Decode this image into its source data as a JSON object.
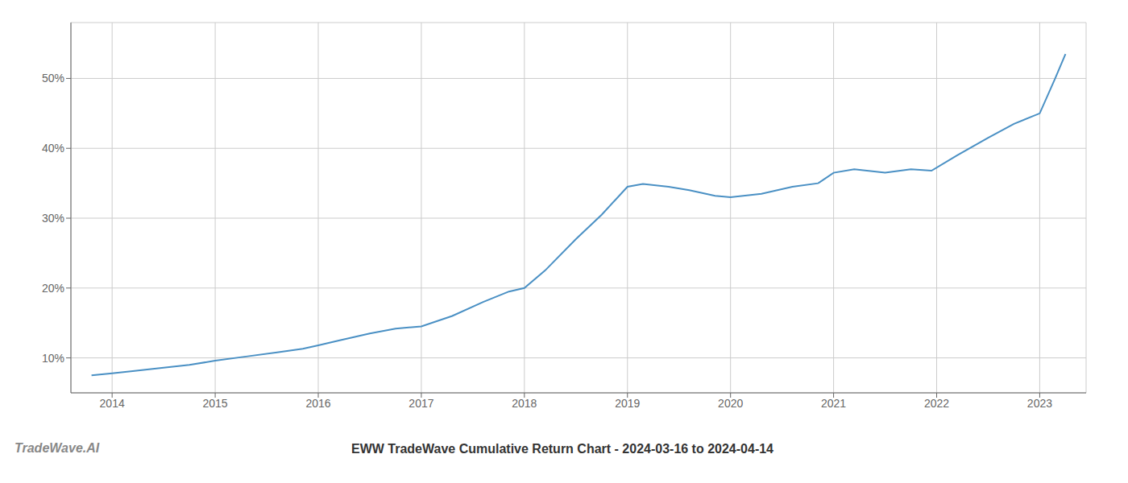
{
  "chart_data": {
    "type": "line",
    "title": "EWW TradeWave Cumulative Return Chart - 2024-03-16 to 2024-04-14",
    "annotations": [
      "TradeWave.AI"
    ],
    "x": [
      2013.8,
      2014.0,
      2014.2,
      2014.5,
      2014.75,
      2015.0,
      2015.3,
      2015.6,
      2015.85,
      2016.0,
      2016.2,
      2016.5,
      2016.75,
      2017.0,
      2017.3,
      2017.6,
      2017.85,
      2018.0,
      2018.2,
      2018.5,
      2018.75,
      2019.0,
      2019.15,
      2019.4,
      2019.6,
      2019.85,
      2020.0,
      2020.3,
      2020.6,
      2020.85,
      2021.0,
      2021.2,
      2021.5,
      2021.75,
      2021.95,
      2022.2,
      2022.5,
      2022.75,
      2023.0,
      2023.15,
      2023.25
    ],
    "values": [
      7.5,
      7.8,
      8.1,
      8.6,
      9.0,
      9.6,
      10.2,
      10.8,
      11.3,
      11.8,
      12.5,
      13.5,
      14.2,
      14.5,
      16.0,
      18.0,
      19.5,
      20.0,
      22.5,
      27.0,
      30.5,
      34.5,
      34.9,
      34.5,
      34.0,
      33.2,
      33.0,
      33.5,
      34.5,
      35.0,
      36.5,
      37.0,
      36.5,
      37.0,
      36.8,
      39.0,
      41.5,
      43.5,
      45.0,
      50.0,
      53.5
    ],
    "color": "#4A90C4",
    "xlim": [
      2013.6,
      2023.45
    ],
    "ylim": [
      5,
      58
    ],
    "xticks": [
      2014,
      2015,
      2016,
      2017,
      2018,
      2019,
      2020,
      2021,
      2022,
      2023
    ],
    "yticks": [
      {
        "value": 10,
        "label": "10%"
      },
      {
        "value": 20,
        "label": "20%"
      },
      {
        "value": 30,
        "label": "30%"
      },
      {
        "value": 40,
        "label": "40%"
      },
      {
        "value": 50,
        "label": "50%"
      }
    ],
    "grid": true
  }
}
